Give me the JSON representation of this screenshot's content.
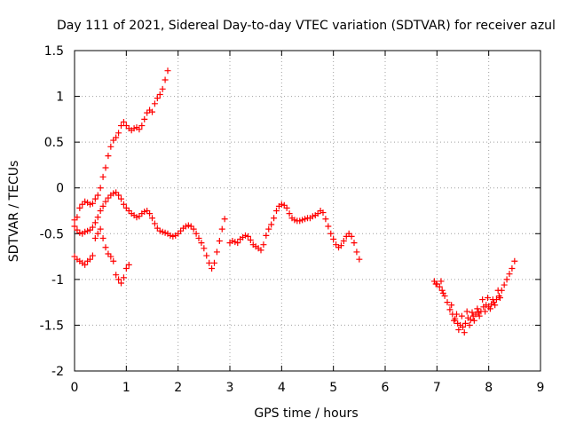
{
  "chart_data": {
    "type": "scatter",
    "title": "Day 111 of 2021, Sidereal Day-to-day VTEC variation (SDTVAR) for receiver azul",
    "xlabel": "GPS time / hours",
    "ylabel": "SDTVAR / TECUs",
    "xlim": [
      0,
      9
    ],
    "ylim": [
      -2,
      1.5
    ],
    "xticks": [
      "0",
      "1",
      "2",
      "3",
      "4",
      "5",
      "6",
      "7",
      "8",
      "9"
    ],
    "yticks": [
      "-2",
      "-1.5",
      "-1",
      "-0.5",
      "0",
      "0.5",
      "1",
      "1.5"
    ],
    "grid": true,
    "marker": "+",
    "color": "#ff0000",
    "series": [
      {
        "points": [
          [
            0.0,
            -0.35
          ],
          [
            0.05,
            -0.32
          ],
          [
            0.1,
            -0.22
          ],
          [
            0.15,
            -0.18
          ],
          [
            0.2,
            -0.15
          ],
          [
            0.25,
            -0.16
          ],
          [
            0.3,
            -0.18
          ],
          [
            0.35,
            -0.17
          ],
          [
            0.4,
            -0.12
          ],
          [
            0.45,
            -0.08
          ],
          [
            0.5,
            0.0
          ],
          [
            0.55,
            0.12
          ],
          [
            0.6,
            0.22
          ],
          [
            0.65,
            0.35
          ],
          [
            0.7,
            0.45
          ],
          [
            0.75,
            0.52
          ],
          [
            0.8,
            0.55
          ],
          [
            0.85,
            0.6
          ],
          [
            0.9,
            0.68
          ],
          [
            0.95,
            0.72
          ],
          [
            1.0,
            0.68
          ],
          [
            1.05,
            0.65
          ],
          [
            1.1,
            0.63
          ],
          [
            1.15,
            0.65
          ],
          [
            1.2,
            0.66
          ],
          [
            1.25,
            0.64
          ],
          [
            1.3,
            0.68
          ],
          [
            1.35,
            0.75
          ],
          [
            1.4,
            0.82
          ],
          [
            1.45,
            0.85
          ],
          [
            1.5,
            0.83
          ],
          [
            1.55,
            0.92
          ],
          [
            1.6,
            0.98
          ],
          [
            1.65,
            1.02
          ],
          [
            1.7,
            1.08
          ],
          [
            1.75,
            1.18
          ],
          [
            1.8,
            1.28
          ]
        ]
      },
      {
        "points": [
          [
            0.0,
            -0.42
          ],
          [
            0.05,
            -0.46
          ],
          [
            0.1,
            -0.49
          ],
          [
            0.15,
            -0.5
          ],
          [
            0.2,
            -0.48
          ],
          [
            0.25,
            -0.47
          ],
          [
            0.3,
            -0.46
          ],
          [
            0.35,
            -0.43
          ],
          [
            0.4,
            -0.38
          ],
          [
            0.45,
            -0.32
          ],
          [
            0.5,
            -0.25
          ],
          [
            0.55,
            -0.2
          ],
          [
            0.6,
            -0.15
          ],
          [
            0.65,
            -0.11
          ],
          [
            0.7,
            -0.08
          ],
          [
            0.75,
            -0.06
          ],
          [
            0.8,
            -0.05
          ],
          [
            0.85,
            -0.08
          ],
          [
            0.9,
            -0.12
          ],
          [
            0.95,
            -0.18
          ],
          [
            1.0,
            -0.22
          ],
          [
            1.05,
            -0.25
          ],
          [
            1.1,
            -0.28
          ],
          [
            1.15,
            -0.3
          ],
          [
            1.2,
            -0.32
          ],
          [
            1.25,
            -0.31
          ],
          [
            1.3,
            -0.28
          ],
          [
            1.35,
            -0.26
          ],
          [
            1.4,
            -0.25
          ],
          [
            1.45,
            -0.28
          ],
          [
            1.5,
            -0.33
          ],
          [
            1.55,
            -0.39
          ],
          [
            1.6,
            -0.44
          ],
          [
            1.65,
            -0.47
          ],
          [
            1.7,
            -0.48
          ],
          [
            1.75,
            -0.49
          ],
          [
            1.8,
            -0.5
          ],
          [
            1.85,
            -0.52
          ],
          [
            1.9,
            -0.53
          ],
          [
            1.95,
            -0.52
          ],
          [
            2.0,
            -0.5
          ],
          [
            2.05,
            -0.47
          ],
          [
            2.1,
            -0.44
          ],
          [
            2.15,
            -0.42
          ],
          [
            2.2,
            -0.41
          ],
          [
            2.25,
            -0.42
          ],
          [
            2.3,
            -0.45
          ],
          [
            2.35,
            -0.5
          ],
          [
            2.4,
            -0.55
          ],
          [
            2.45,
            -0.6
          ],
          [
            2.5,
            -0.66
          ],
          [
            2.55,
            -0.74
          ],
          [
            2.6,
            -0.82
          ],
          [
            2.65,
            -0.88
          ],
          [
            2.7,
            -0.82
          ],
          [
            2.75,
            -0.7
          ],
          [
            2.8,
            -0.58
          ],
          [
            2.85,
            -0.45
          ],
          [
            2.9,
            -0.34
          ]
        ]
      },
      {
        "points": [
          [
            0.0,
            -0.75
          ],
          [
            0.05,
            -0.78
          ],
          [
            0.1,
            -0.8
          ],
          [
            0.15,
            -0.82
          ],
          [
            0.2,
            -0.84
          ],
          [
            0.25,
            -0.8
          ],
          [
            0.3,
            -0.78
          ],
          [
            0.35,
            -0.74
          ],
          [
            0.4,
            -0.55
          ],
          [
            0.45,
            -0.5
          ],
          [
            0.5,
            -0.45
          ],
          [
            0.55,
            -0.55
          ],
          [
            0.6,
            -0.65
          ],
          [
            0.65,
            -0.72
          ],
          [
            0.7,
            -0.75
          ],
          [
            0.75,
            -0.8
          ],
          [
            0.8,
            -0.95
          ],
          [
            0.85,
            -1.0
          ],
          [
            0.9,
            -1.04
          ],
          [
            0.95,
            -0.98
          ],
          [
            1.0,
            -0.88
          ],
          [
            1.05,
            -0.84
          ]
        ]
      },
      {
        "points": [
          [
            3.0,
            -0.6
          ],
          [
            3.05,
            -0.58
          ],
          [
            3.1,
            -0.59
          ],
          [
            3.15,
            -0.6
          ],
          [
            3.2,
            -0.56
          ],
          [
            3.25,
            -0.54
          ],
          [
            3.3,
            -0.52
          ],
          [
            3.35,
            -0.53
          ],
          [
            3.4,
            -0.57
          ],
          [
            3.45,
            -0.62
          ],
          [
            3.5,
            -0.64
          ],
          [
            3.55,
            -0.66
          ],
          [
            3.6,
            -0.68
          ],
          [
            3.65,
            -0.62
          ],
          [
            3.7,
            -0.52
          ],
          [
            3.75,
            -0.45
          ],
          [
            3.8,
            -0.4
          ],
          [
            3.85,
            -0.33
          ],
          [
            3.9,
            -0.25
          ],
          [
            3.95,
            -0.2
          ],
          [
            4.0,
            -0.18
          ],
          [
            4.05,
            -0.19
          ],
          [
            4.1,
            -0.22
          ],
          [
            4.15,
            -0.28
          ],
          [
            4.2,
            -0.33
          ],
          [
            4.25,
            -0.35
          ],
          [
            4.3,
            -0.36
          ],
          [
            4.35,
            -0.36
          ],
          [
            4.4,
            -0.35
          ],
          [
            4.45,
            -0.34
          ],
          [
            4.5,
            -0.33
          ],
          [
            4.55,
            -0.33
          ],
          [
            4.6,
            -0.31
          ],
          [
            4.65,
            -0.3
          ],
          [
            4.7,
            -0.28
          ],
          [
            4.75,
            -0.25
          ],
          [
            4.8,
            -0.27
          ],
          [
            4.85,
            -0.34
          ],
          [
            4.9,
            -0.42
          ],
          [
            4.95,
            -0.5
          ],
          [
            5.0,
            -0.56
          ],
          [
            5.05,
            -0.62
          ],
          [
            5.1,
            -0.65
          ],
          [
            5.15,
            -0.63
          ],
          [
            5.2,
            -0.58
          ],
          [
            5.25,
            -0.53
          ],
          [
            5.3,
            -0.5
          ],
          [
            5.35,
            -0.53
          ],
          [
            5.4,
            -0.6
          ],
          [
            5.45,
            -0.7
          ],
          [
            5.5,
            -0.78
          ]
        ]
      },
      {
        "points": [
          [
            6.95,
            -1.02
          ],
          [
            7.0,
            -1.05
          ],
          [
            7.05,
            -1.08
          ],
          [
            7.1,
            -1.12
          ],
          [
            7.15,
            -1.18
          ],
          [
            7.2,
            -1.25
          ],
          [
            7.25,
            -1.33
          ],
          [
            7.3,
            -1.38
          ],
          [
            7.35,
            -1.43
          ],
          [
            7.4,
            -1.48
          ],
          [
            7.45,
            -1.5
          ],
          [
            7.5,
            -1.52
          ],
          [
            7.55,
            -1.48
          ],
          [
            7.6,
            -1.42
          ],
          [
            7.65,
            -1.44
          ],
          [
            7.7,
            -1.4
          ],
          [
            7.75,
            -1.38
          ],
          [
            7.8,
            -1.36
          ],
          [
            7.85,
            -1.35
          ],
          [
            7.9,
            -1.3
          ],
          [
            7.95,
            -1.28
          ],
          [
            8.0,
            -1.3
          ],
          [
            8.05,
            -1.27
          ],
          [
            8.1,
            -1.25
          ],
          [
            8.15,
            -1.22
          ],
          [
            8.2,
            -1.18
          ],
          [
            8.25,
            -1.12
          ],
          [
            8.3,
            -1.06
          ],
          [
            8.35,
            -1.0
          ],
          [
            8.4,
            -0.94
          ],
          [
            8.45,
            -0.88
          ],
          [
            8.5,
            -0.8
          ]
        ]
      },
      {
        "points": [
          [
            6.98,
            -1.05
          ],
          [
            7.08,
            -1.02
          ],
          [
            7.12,
            -1.15
          ],
          [
            7.28,
            -1.28
          ],
          [
            7.33,
            -1.45
          ],
          [
            7.38,
            -1.38
          ],
          [
            7.42,
            -1.55
          ],
          [
            7.48,
            -1.4
          ],
          [
            7.53,
            -1.58
          ],
          [
            7.58,
            -1.35
          ],
          [
            7.63,
            -1.5
          ],
          [
            7.68,
            -1.36
          ],
          [
            7.72,
            -1.45
          ],
          [
            7.78,
            -1.32
          ],
          [
            7.82,
            -1.4
          ],
          [
            7.88,
            -1.22
          ],
          [
            7.93,
            -1.35
          ],
          [
            7.98,
            -1.2
          ],
          [
            8.03,
            -1.32
          ],
          [
            8.08,
            -1.22
          ],
          [
            8.12,
            -1.28
          ],
          [
            8.18,
            -1.12
          ],
          [
            8.22,
            -1.2
          ]
        ]
      }
    ]
  }
}
